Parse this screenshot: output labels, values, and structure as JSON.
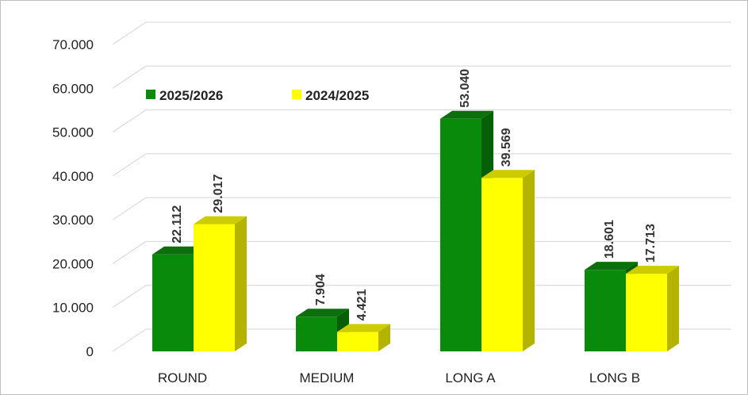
{
  "chart_data": {
    "type": "bar",
    "categories": [
      "ROUND",
      "MEDIUM",
      "LONG A",
      "LONG B"
    ],
    "series": [
      {
        "name": "2025/2026",
        "values": [
          22112,
          7904,
          53040,
          18601
        ],
        "labels": [
          "22.112",
          "7.904",
          "53.040",
          "18.601"
        ],
        "color": "#0a8a0a"
      },
      {
        "name": "2024/2025",
        "values": [
          29017,
          4421,
          39569,
          17713
        ],
        "labels": [
          "29.017",
          "4.421",
          "39.569",
          "17.713"
        ],
        "color": "#ffff00"
      }
    ],
    "ylim": [
      0,
      70000
    ],
    "yticks": [
      0,
      10000,
      20000,
      30000,
      40000,
      50000,
      60000,
      70000
    ],
    "ytick_labels": [
      "0",
      "10.000",
      "20.000",
      "30.000",
      "40.000",
      "50.000",
      "60.000",
      "70.000"
    ],
    "legend": "top-left",
    "grid": true,
    "style": "3d-column"
  }
}
